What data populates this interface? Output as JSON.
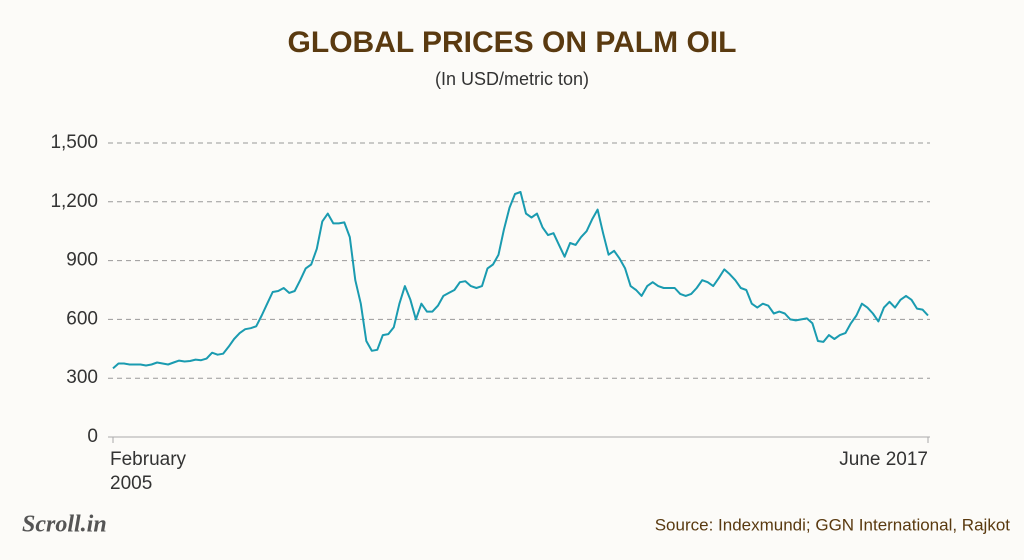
{
  "chart_data": {
    "type": "line",
    "title": "GLOBAL PRICES ON PALM OIL",
    "subtitle": "(In USD/metric ton)",
    "source": "Source: Indexmundi; GGN International, Rajkot",
    "logo": "Scroll.in",
    "categories": [
      "February 2005",
      null,
      null,
      null,
      null,
      null,
      null,
      null,
      null,
      null,
      null,
      null,
      null,
      null,
      null,
      null,
      null,
      null,
      null,
      null,
      null,
      null,
      null,
      null,
      null,
      null,
      null,
      null,
      null,
      null,
      null,
      null,
      null,
      null,
      null,
      null,
      null,
      null,
      null,
      null,
      null,
      null,
      null,
      null,
      null,
      null,
      null,
      null,
      null,
      null,
      null,
      null,
      null,
      null,
      null,
      null,
      null,
      null,
      null,
      null,
      null,
      null,
      null,
      null,
      null,
      null,
      null,
      null,
      null,
      null,
      null,
      null,
      null,
      null,
      null,
      null,
      null,
      null,
      null,
      null,
      null,
      null,
      null,
      null,
      null,
      null,
      null,
      null,
      null,
      null,
      null,
      null,
      null,
      null,
      null,
      null,
      null,
      null,
      null,
      null,
      null,
      null,
      null,
      null,
      null,
      null,
      null,
      null,
      null,
      null,
      null,
      null,
      null,
      null,
      null,
      null,
      null,
      null,
      null,
      null,
      null,
      null,
      null,
      null,
      null,
      null,
      null,
      null,
      null,
      null,
      null,
      null,
      null,
      null,
      null,
      null,
      null,
      null,
      null,
      null,
      null,
      null,
      null,
      null,
      null,
      null,
      null,
      null,
      "June 2017"
    ],
    "series": [
      {
        "name": "Palm oil",
        "color": "#1a9bb0",
        "values": [
          350,
          375,
          375,
          370,
          370,
          370,
          365,
          370,
          380,
          375,
          370,
          380,
          390,
          385,
          388,
          395,
          392,
          400,
          430,
          420,
          425,
          460,
          500,
          530,
          550,
          555,
          565,
          620,
          680,
          740,
          745,
          760,
          735,
          745,
          800,
          860,
          880,
          960,
          1100,
          1140,
          1090,
          1090,
          1095,
          1020,
          800,
          680,
          490,
          440,
          445,
          520,
          525,
          560,
          680,
          770,
          700,
          600,
          680,
          640,
          640,
          670,
          720,
          735,
          750,
          790,
          795,
          770,
          760,
          770,
          860,
          880,
          930,
          1060,
          1170,
          1240,
          1250,
          1140,
          1120,
          1140,
          1070,
          1030,
          1040,
          980,
          920,
          990,
          980,
          1020,
          1050,
          1110,
          1160,
          1040,
          930,
          950,
          910,
          860,
          770,
          750,
          720,
          770,
          790,
          770,
          760,
          760,
          760,
          730,
          720,
          730,
          760,
          800,
          790,
          770,
          810,
          855,
          830,
          800,
          760,
          750,
          680,
          660,
          680,
          670,
          630,
          640,
          630,
          600,
          595,
          600,
          605,
          580,
          490,
          485,
          520,
          500,
          520,
          530,
          580,
          620,
          680,
          660,
          630,
          590,
          660,
          690,
          660,
          700,
          720,
          700,
          655,
          650,
          620
        ]
      }
    ],
    "ylim": [
      0,
      1500
    ],
    "yticks": [
      0,
      300,
      600,
      900,
      {
        "value": 1200,
        "label": "1,200"
      },
      {
        "value": 1500,
        "label": "1,500"
      }
    ],
    "grid": true
  }
}
